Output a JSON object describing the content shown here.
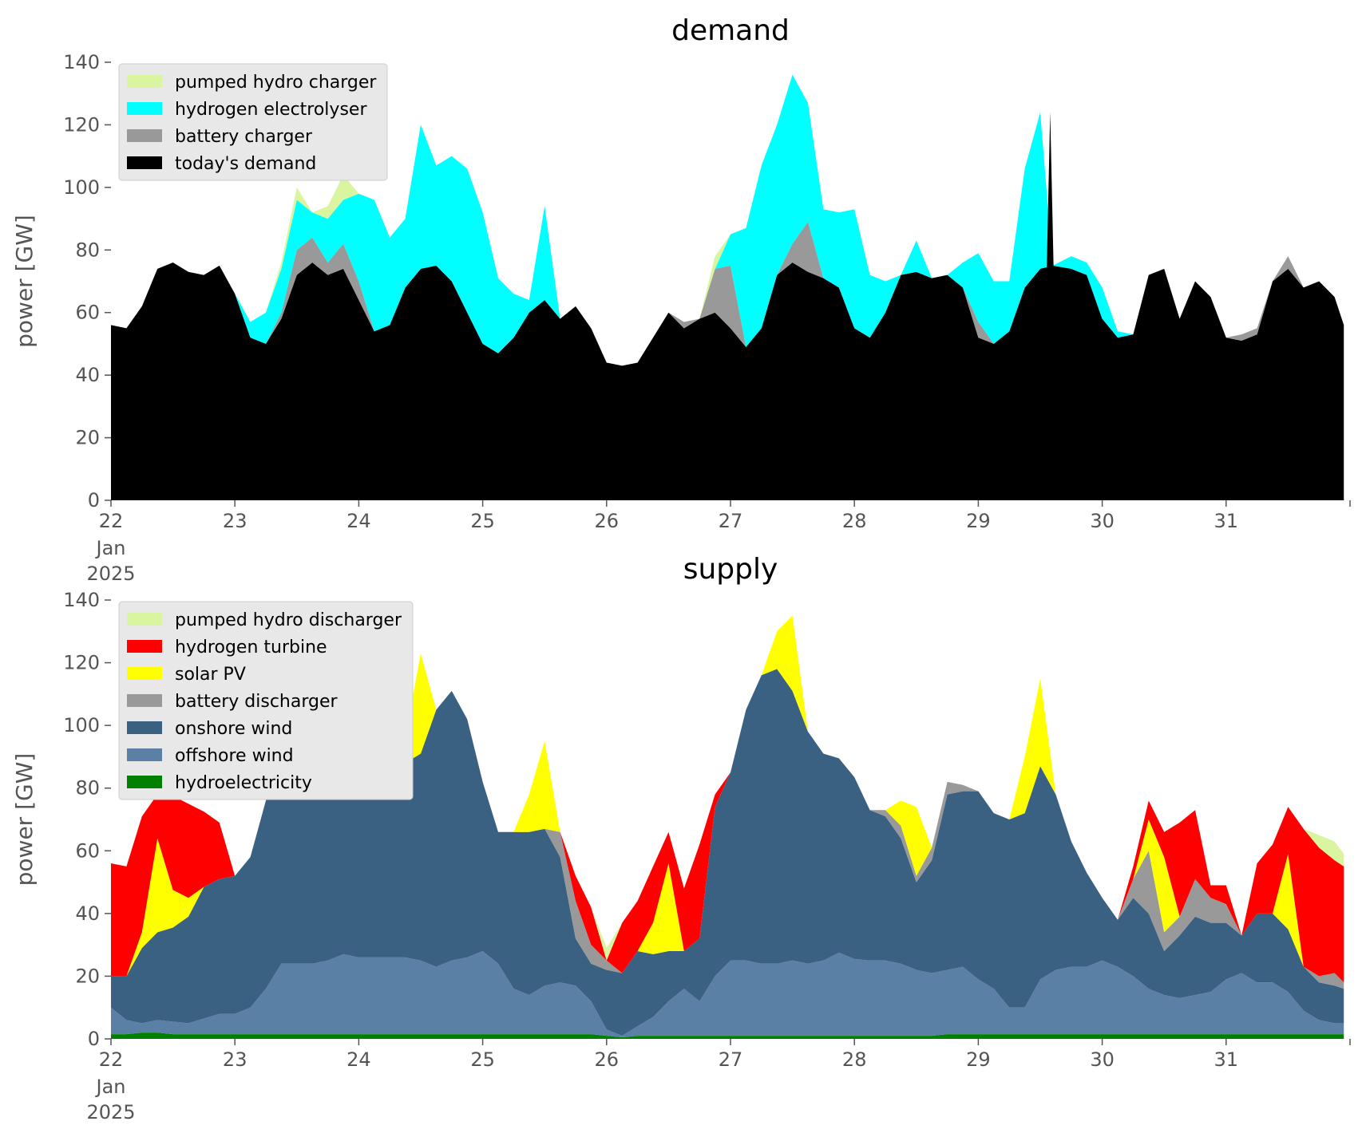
{
  "chart_data": [
    {
      "type": "area",
      "title": "demand",
      "ylabel": "power [GW]",
      "xlabel": "",
      "ylim": [
        0,
        140
      ],
      "yticks": [
        "0",
        "20",
        "40",
        "60",
        "80",
        "100",
        "120",
        "140"
      ],
      "xticks": [
        "22",
        "23",
        "24",
        "25",
        "26",
        "27",
        "28",
        "29",
        "30",
        "31"
      ],
      "x_date_label": [
        "Jan",
        "2025"
      ],
      "legend": "top-left",
      "grid": false,
      "x": [
        22.0,
        22.125,
        22.25,
        22.375,
        22.5,
        22.625,
        22.75,
        22.875,
        23.0,
        23.125,
        23.25,
        23.375,
        23.5,
        23.625,
        23.75,
        23.875,
        24.0,
        24.125,
        24.25,
        24.375,
        24.5,
        24.625,
        24.75,
        24.875,
        25.0,
        25.125,
        25.25,
        25.375,
        25.5,
        25.625,
        25.75,
        25.875,
        26.0,
        26.125,
        26.25,
        26.375,
        26.5,
        26.625,
        26.75,
        26.875,
        27.0,
        27.125,
        27.25,
        27.375,
        27.5,
        27.625,
        27.75,
        27.875,
        28.0,
        28.125,
        28.25,
        28.375,
        28.5,
        28.625,
        28.75,
        28.875,
        29.0,
        29.125,
        29.25,
        29.375,
        29.5,
        29.6,
        29.75,
        29.875,
        30.0,
        30.125,
        30.25,
        30.375,
        30.5,
        30.625,
        30.75,
        30.875,
        31.0,
        31.125,
        31.25,
        31.375,
        31.5,
        31.625,
        31.75,
        31.875,
        31.95
      ],
      "series": [
        {
          "name": "today's demand",
          "color": "#000000",
          "values": [
            56,
            55,
            62,
            74,
            76,
            73,
            72,
            75,
            66,
            52,
            50,
            58,
            72,
            76,
            72,
            74,
            64,
            54,
            56,
            68,
            74,
            75,
            70,
            60,
            50,
            47,
            52,
            60,
            64,
            58,
            62,
            55,
            44,
            43,
            44,
            52,
            60,
            55,
            58,
            60,
            55,
            49,
            55,
            72,
            76,
            73,
            71,
            68,
            55,
            52,
            60,
            72,
            73,
            71,
            72,
            68,
            52,
            50,
            54,
            68,
            74,
            75,
            74,
            72,
            58,
            52,
            53,
            72,
            74,
            58,
            70,
            65,
            52,
            51,
            53,
            70,
            74,
            68,
            70,
            65,
            56
          ]
        },
        {
          "name": "battery charger",
          "color": "#999999",
          "values": [
            0,
            0,
            0,
            0,
            0,
            0,
            0,
            0,
            0,
            0,
            0,
            2,
            8,
            8,
            4,
            8,
            6,
            0,
            0,
            0,
            0,
            0,
            0,
            0,
            0,
            0,
            0,
            0,
            0,
            0,
            0,
            0,
            0,
            0,
            0,
            0,
            0,
            2,
            0,
            14,
            20,
            0,
            0,
            0,
            6,
            16,
            0,
            0,
            0,
            0,
            0,
            0,
            0,
            0,
            0,
            0,
            5,
            0,
            0,
            0,
            0,
            0,
            0,
            0,
            0,
            0,
            0,
            0,
            0,
            0,
            0,
            0,
            0,
            2,
            2,
            0,
            4,
            0,
            0,
            0,
            0
          ]
        },
        {
          "name": "hydrogen electrolyser",
          "color": "#00ffff",
          "values": [
            0,
            0,
            0,
            0,
            0,
            0,
            0,
            0,
            0,
            5,
            10,
            14,
            16,
            8,
            14,
            14,
            28,
            42,
            28,
            22,
            46,
            32,
            40,
            46,
            42,
            24,
            14,
            4,
            30,
            0,
            0,
            0,
            0,
            0,
            0,
            0,
            0,
            0,
            0,
            0,
            10,
            38,
            52,
            48,
            54,
            38,
            22,
            24,
            38,
            20,
            10,
            0,
            10,
            0,
            0,
            8,
            22,
            20,
            16,
            38,
            50,
            0,
            4,
            4,
            10,
            2,
            0,
            0,
            0,
            0,
            0,
            0,
            0,
            0,
            0,
            0,
            0,
            0,
            0,
            0,
            0
          ]
        },
        {
          "name": "pumped hydro charger",
          "color": "#d9f5a0",
          "values": [
            0,
            0,
            0,
            0,
            0,
            0,
            0,
            0,
            0,
            0,
            0,
            2,
            4,
            0,
            4,
            8,
            0,
            0,
            0,
            0,
            0,
            0,
            0,
            0,
            0,
            0,
            0,
            0,
            0,
            0,
            0,
            0,
            0,
            0,
            0,
            0,
            0,
            0,
            0,
            4,
            0,
            0,
            0,
            0,
            0,
            0,
            0,
            0,
            0,
            0,
            0,
            0,
            0,
            0,
            0,
            0,
            0,
            0,
            0,
            0,
            0,
            0,
            0,
            0,
            0,
            0,
            0,
            0,
            0,
            0,
            0,
            0,
            0,
            0,
            0,
            0,
            0,
            0,
            0,
            0,
            0
          ]
        }
      ],
      "spike": {
        "series": "today's demand",
        "x": 29.58,
        "y": 124
      }
    },
    {
      "type": "area",
      "title": "supply",
      "ylabel": "power [GW]",
      "xlabel": "",
      "ylim": [
        0,
        140
      ],
      "yticks": [
        "0",
        "20",
        "40",
        "60",
        "80",
        "100",
        "120",
        "140"
      ],
      "xticks": [
        "22",
        "23",
        "24",
        "25",
        "26",
        "27",
        "28",
        "29",
        "30",
        "31"
      ],
      "x_date_label": [
        "Jan",
        "2025"
      ],
      "legend": "top-left",
      "grid": false,
      "x": [
        22.0,
        22.125,
        22.25,
        22.375,
        22.5,
        22.625,
        22.75,
        22.875,
        23.0,
        23.125,
        23.25,
        23.375,
        23.5,
        23.625,
        23.75,
        23.875,
        24.0,
        24.125,
        24.25,
        24.375,
        24.5,
        24.625,
        24.75,
        24.875,
        25.0,
        25.125,
        25.25,
        25.375,
        25.5,
        25.625,
        25.75,
        25.875,
        26.0,
        26.125,
        26.25,
        26.375,
        26.5,
        26.625,
        26.75,
        26.875,
        27.0,
        27.125,
        27.25,
        27.375,
        27.5,
        27.625,
        27.75,
        27.875,
        28.0,
        28.125,
        28.25,
        28.375,
        28.5,
        28.625,
        28.75,
        28.875,
        29.0,
        29.125,
        29.25,
        29.375,
        29.5,
        29.625,
        29.75,
        29.875,
        30.0,
        30.125,
        30.25,
        30.375,
        30.5,
        30.625,
        30.75,
        30.875,
        31.0,
        31.125,
        31.25,
        31.375,
        31.5,
        31.625,
        31.75,
        31.875,
        31.95
      ],
      "series": [
        {
          "name": "hydroelectricity",
          "color": "#008000",
          "values": [
            1.5,
            1.5,
            2.0,
            2.0,
            1.5,
            1.5,
            1.5,
            1.5,
            1.5,
            1.5,
            1.5,
            1.5,
            1.5,
            1.5,
            1.5,
            1.5,
            1.5,
            1.5,
            1.5,
            1.5,
            1.5,
            1.5,
            1.5,
            1.5,
            1.5,
            1.5,
            1.5,
            1.5,
            1.5,
            1.5,
            1.5,
            1.5,
            1.0,
            0.5,
            1.0,
            1.0,
            1.0,
            1.0,
            1.0,
            1.0,
            1.0,
            1.0,
            1.0,
            1.0,
            1.0,
            1.0,
            1.0,
            1.0,
            1.0,
            1.0,
            1.0,
            1.0,
            1.0,
            1.0,
            1.5,
            1.5,
            1.5,
            1.5,
            1.5,
            1.5,
            1.5,
            1.5,
            1.5,
            1.5,
            1.5,
            1.5,
            1.5,
            1.5,
            1.5,
            1.5,
            1.5,
            1.5,
            1.5,
            1.5,
            1.5,
            1.5,
            1.5,
            1.5,
            1.5,
            1.5,
            1.5
          ]
        },
        {
          "name": "offshore wind",
          "color": "#5b80a5",
          "values": [
            8.5,
            4.5,
            3.0,
            4.0,
            4.0,
            3.5,
            5.0,
            6.5,
            6.5,
            8.5,
            14.5,
            22.5,
            22.5,
            22.5,
            23.5,
            25.5,
            24.5,
            24.5,
            24.5,
            24.5,
            23.5,
            21.5,
            23.5,
            24.5,
            26.5,
            22.5,
            14.5,
            12.5,
            15.5,
            16.5,
            15.5,
            10.5,
            2.0,
            0.5,
            3.0,
            6.0,
            11.0,
            15.0,
            11.0,
            19.0,
            24.0,
            24.0,
            23.0,
            23.0,
            24.0,
            23.0,
            24.0,
            26.5,
            24.5,
            24.0,
            24.0,
            23.0,
            21.0,
            20.0,
            20.5,
            21.5,
            17.5,
            14.5,
            8.5,
            8.5,
            17.5,
            20.5,
            21.5,
            21.5,
            23.5,
            21.5,
            18.5,
            14.5,
            12.5,
            11.5,
            12.5,
            13.5,
            17.5,
            19.5,
            16.5,
            16.5,
            13.5,
            7.5,
            4.5,
            3.5,
            3.5
          ]
        },
        {
          "name": "onshore wind",
          "color": "#3b6182",
          "values": [
            10,
            14,
            24,
            28,
            30,
            34,
            42,
            43,
            44,
            48,
            60,
            88,
            82,
            80,
            68,
            64,
            62,
            58,
            58,
            62,
            66,
            82,
            86,
            76,
            54,
            42,
            50,
            52,
            50,
            40,
            15,
            12,
            19,
            20,
            24,
            20,
            16,
            12,
            20,
            54,
            60,
            80,
            92,
            94,
            86,
            74,
            66,
            62,
            58,
            48,
            46,
            40,
            28,
            36,
            56,
            56,
            60,
            56,
            60,
            62,
            68,
            56,
            40,
            30,
            20,
            15,
            25,
            24,
            14,
            20,
            25,
            22,
            18,
            12,
            22,
            22,
            20,
            14,
            12,
            12,
            11
          ]
        },
        {
          "name": "battery discharger",
          "color": "#999999",
          "values": [
            0,
            0,
            0,
            0,
            0,
            0,
            0,
            0,
            0,
            0,
            0,
            0,
            0,
            0,
            0,
            0,
            0,
            0,
            0,
            0,
            0,
            0,
            0,
            0,
            0,
            0,
            0,
            0,
            0,
            8,
            12,
            6,
            3,
            0,
            0,
            0,
            0,
            0,
            0,
            0,
            0,
            0,
            0,
            0,
            0,
            0,
            0,
            0,
            0,
            0,
            2,
            4,
            2,
            4,
            4,
            2,
            0,
            0,
            0,
            0,
            0,
            0,
            0,
            0,
            0,
            0,
            6,
            20,
            6,
            6,
            12,
            8,
            6,
            0,
            0,
            0,
            0,
            0,
            2,
            4,
            2
          ]
        },
        {
          "name": "solar PV",
          "color": "#ffff00",
          "values": [
            0,
            0,
            5,
            30,
            12,
            6,
            0,
            0,
            0,
            0,
            0,
            0,
            18,
            18,
            0,
            0,
            0,
            0,
            0,
            8,
            32,
            0,
            0,
            0,
            0,
            0,
            0,
            12,
            28,
            0,
            0,
            0,
            0,
            0,
            0,
            10,
            28,
            0,
            0,
            0,
            0,
            0,
            0,
            12,
            24,
            0,
            0,
            0,
            0,
            0,
            0,
            8,
            22,
            0,
            0,
            0,
            0,
            0,
            0,
            18,
            28,
            0,
            0,
            0,
            0,
            0,
            0,
            10,
            24,
            0,
            0,
            0,
            0,
            0,
            0,
            0,
            24,
            0,
            0,
            0,
            0
          ]
        },
        {
          "name": "hydrogen turbine",
          "color": "#ff0000",
          "values": [
            36,
            35,
            37,
            14,
            30,
            30,
            24,
            18,
            0,
            0,
            0,
            0,
            0,
            0,
            0,
            0,
            0,
            0,
            0,
            0,
            0,
            0,
            0,
            0,
            0,
            0,
            0,
            0,
            0,
            0,
            8,
            12,
            0,
            16,
            16,
            18,
            10,
            20,
            30,
            4,
            0,
            0,
            0,
            0,
            0,
            0,
            0,
            0,
            0,
            0,
            0,
            0,
            0,
            0,
            0,
            0,
            0,
            0,
            0,
            0,
            0,
            0,
            0,
            0,
            0,
            0,
            4,
            6,
            8,
            30,
            22,
            4,
            6,
            0,
            16,
            22,
            15,
            44,
            41,
            36,
            37
          ]
        },
        {
          "name": "pumped hydro discharger",
          "color": "#d9f5a0",
          "values": [
            0,
            0,
            0,
            0,
            0,
            0,
            0,
            0,
            0,
            0,
            0,
            0,
            0,
            0,
            0,
            0,
            0,
            0,
            0,
            0,
            0,
            0,
            0,
            0,
            0,
            0,
            0,
            0,
            0,
            0,
            0,
            0,
            4,
            0,
            0,
            0,
            0,
            0,
            0,
            0,
            0,
            0,
            0,
            0,
            0,
            0,
            0,
            0,
            0,
            0,
            0,
            0,
            0,
            0,
            0,
            0,
            0,
            0,
            0,
            0,
            0,
            0,
            0,
            0,
            0,
            0,
            0,
            0,
            0,
            0,
            0,
            0,
            0,
            0,
            0,
            0,
            0,
            0,
            4,
            6,
            4
          ]
        }
      ]
    }
  ]
}
